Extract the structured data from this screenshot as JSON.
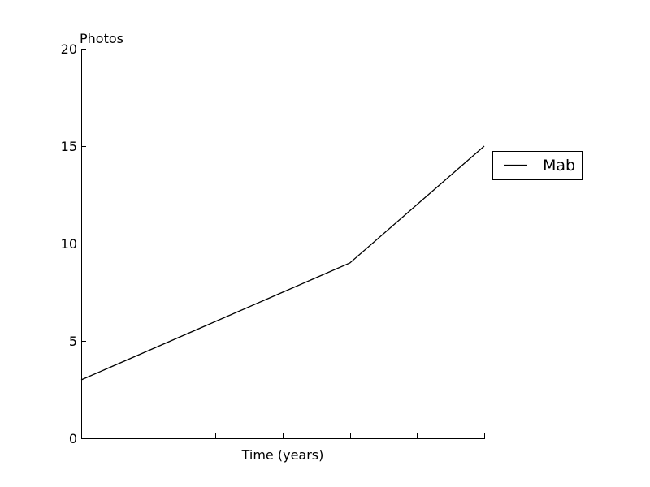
{
  "chart_data": {
    "type": "line",
    "title": "",
    "ylabel": "Photos",
    "xlabel": "Time (years)",
    "x": [
      0,
      1,
      2,
      3,
      4,
      5,
      6
    ],
    "xlim": [
      0,
      6
    ],
    "ylim": [
      0,
      20
    ],
    "yticks": [
      0,
      5,
      10,
      15,
      20
    ],
    "ytick_labels": [
      "0",
      "5",
      "10",
      "15",
      "20"
    ],
    "xtick_labels_shown": false,
    "grid": false,
    "legend_position": "right",
    "series": [
      {
        "name": "Mab",
        "color": "#000000",
        "values": [
          3,
          4.5,
          6,
          7.5,
          9,
          12,
          15
        ]
      }
    ]
  }
}
